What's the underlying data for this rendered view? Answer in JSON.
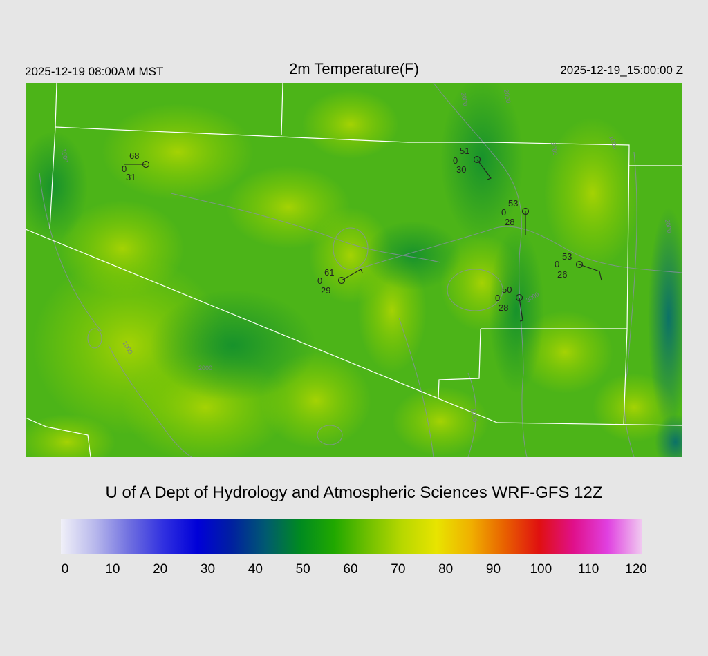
{
  "header": {
    "title": "2m Temperature(F)",
    "local_time": "2025-12-19 08:00AM MST",
    "utc_time": "2025-12-19_15:00:00 Z"
  },
  "stations": [
    {
      "temp": "68",
      "zero": "0",
      "dew": "31"
    },
    {
      "temp": "51",
      "zero": "0",
      "dew": "30"
    },
    {
      "temp": "53",
      "zero": "0",
      "dew": "28"
    },
    {
      "temp": "53",
      "zero": "0",
      "dew": "26"
    },
    {
      "temp": "61",
      "zero": "0",
      "dew": "29"
    },
    {
      "temp": "50",
      "zero": "0",
      "dew": "28"
    }
  ],
  "contour_labels": [
    "2000",
    "1000",
    "2000",
    "1000",
    "3000",
    "2000",
    "2000",
    "3000",
    "1000",
    "1000"
  ],
  "footer": {
    "credit": "U of A Dept of Hydrology and Atmospheric Sciences WRF-GFS 12Z"
  },
  "colorbar": {
    "ticks": [
      "0",
      "10",
      "20",
      "30",
      "40",
      "50",
      "60",
      "70",
      "80",
      "90",
      "100",
      "110",
      "120"
    ],
    "colors": [
      "#f0f0f8",
      "#b8b8ec",
      "#7070e0",
      "#3030e0",
      "#0000d8",
      "#0020a0",
      "#005a70",
      "#008a20",
      "#20a800",
      "#70c000",
      "#b8d800",
      "#e8e400",
      "#f0b000",
      "#e86000",
      "#e01010",
      "#e0108a",
      "#e040e0",
      "#f0c8f0"
    ]
  }
}
